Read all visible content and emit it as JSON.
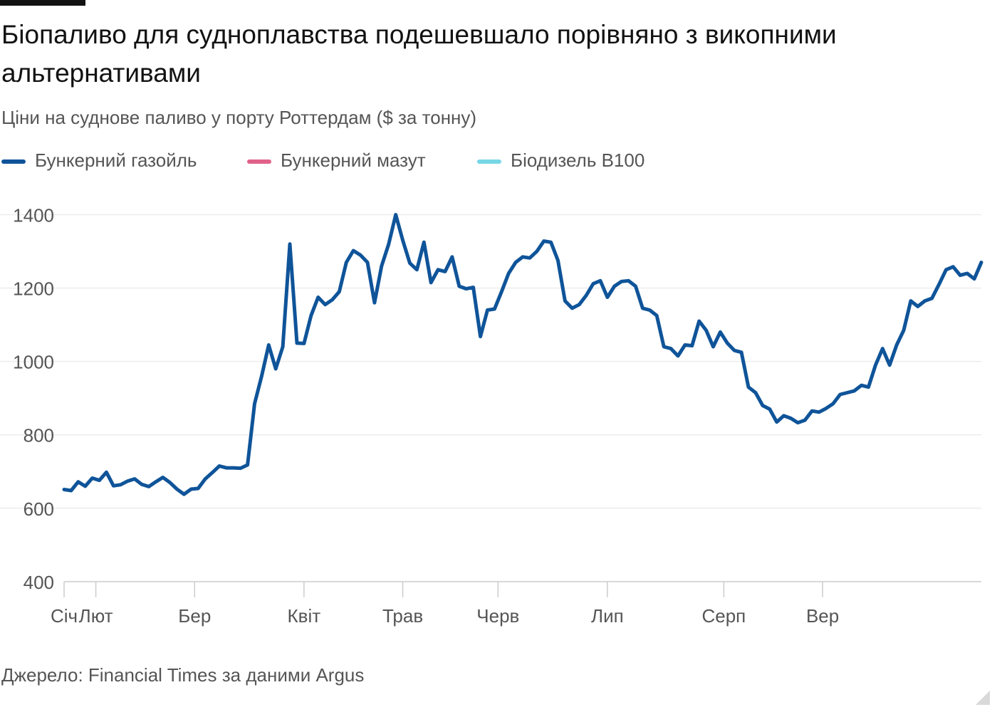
{
  "title": "Біопаливо для судноплавства подешевшало порівняно з викопними альтернативами",
  "subtitle": "Ціни на суднове паливо у порту Роттердам ($ за тонну)",
  "source": "Джерело: Financial Times за даними Argus",
  "legend": [
    {
      "label": "Бункерний газойль",
      "color": "#0f5499"
    },
    {
      "label": "Бункерний мазут",
      "color": "#e0628a"
    },
    {
      "label": "Біодизель B100",
      "color": "#76d7e6"
    }
  ],
  "chart_data": {
    "type": "line",
    "title": "Біопаливо для судноплавства подешевшало порівняно з викопними альтернативами",
    "subtitle": "Ціни на суднове паливо у порту Роттердам ($ за тонну)",
    "xlabel": "",
    "ylabel": "",
    "xlim": [
      1,
      261
    ],
    "ylim": [
      390,
      1500
    ],
    "y_ticks": [
      400,
      600,
      800,
      1000,
      1200,
      1400
    ],
    "x_ticks": [
      {
        "label": "Січ",
        "x": 1
      },
      {
        "label": "Лют",
        "x": 10
      },
      {
        "label": "Бер",
        "x": 38
      },
      {
        "label": "Квіт",
        "x": 69
      },
      {
        "label": "Трав",
        "x": 97
      },
      {
        "label": "Черв",
        "x": 124
      },
      {
        "label": "Лип",
        "x": 155
      },
      {
        "label": "Серп",
        "x": 188
      },
      {
        "label": "Вер",
        "x": 216
      }
    ],
    "grid": true,
    "legend_position": "top-left",
    "series": [
      {
        "name": "Бункерний газойль",
        "color": "#0f5499",
        "points": [
          [
            1,
            651
          ],
          [
            3,
            648
          ],
          [
            5,
            672
          ],
          [
            7,
            660
          ],
          [
            9,
            682
          ],
          [
            11,
            676
          ],
          [
            13,
            698
          ],
          [
            15,
            661
          ],
          [
            17,
            664
          ],
          [
            19,
            674
          ],
          [
            21,
            680
          ],
          [
            23,
            665
          ],
          [
            25,
            659
          ],
          [
            27,
            672
          ],
          [
            29,
            684
          ],
          [
            31,
            670
          ],
          [
            33,
            652
          ],
          [
            35,
            638
          ],
          [
            37,
            652
          ],
          [
            39,
            654
          ],
          [
            41,
            680
          ],
          [
            43,
            697
          ],
          [
            45,
            715
          ],
          [
            47,
            710
          ],
          [
            49,
            710
          ],
          [
            51,
            709
          ],
          [
            53,
            718
          ],
          [
            55,
            885
          ],
          [
            57,
            960
          ],
          [
            59,
            1045
          ],
          [
            61,
            980
          ],
          [
            63,
            1040
          ],
          [
            65,
            1320
          ],
          [
            67,
            1050
          ],
          [
            69,
            1049
          ],
          [
            71,
            1125
          ],
          [
            73,
            1175
          ],
          [
            75,
            1155
          ],
          [
            77,
            1168
          ],
          [
            79,
            1190
          ],
          [
            81,
            1270
          ],
          [
            83,
            1302
          ],
          [
            85,
            1290
          ],
          [
            87,
            1270
          ],
          [
            89,
            1160
          ],
          [
            91,
            1260
          ],
          [
            93,
            1320
          ],
          [
            95,
            1400
          ],
          [
            97,
            1330
          ],
          [
            99,
            1268
          ],
          [
            101,
            1250
          ],
          [
            103,
            1325
          ],
          [
            105,
            1215
          ],
          [
            107,
            1250
          ],
          [
            109,
            1245
          ],
          [
            111,
            1285
          ],
          [
            113,
            1205
          ],
          [
            115,
            1198
          ],
          [
            117,
            1202
          ],
          [
            119,
            1068
          ],
          [
            121,
            1140
          ],
          [
            123,
            1143
          ],
          [
            125,
            1190
          ],
          [
            127,
            1240
          ],
          [
            129,
            1270
          ],
          [
            131,
            1285
          ],
          [
            133,
            1282
          ],
          [
            135,
            1300
          ],
          [
            137,
            1328
          ],
          [
            139,
            1325
          ],
          [
            141,
            1275
          ],
          [
            143,
            1165
          ],
          [
            145,
            1145
          ],
          [
            147,
            1155
          ],
          [
            149,
            1180
          ],
          [
            151,
            1212
          ],
          [
            153,
            1220
          ],
          [
            155,
            1175
          ],
          [
            157,
            1205
          ],
          [
            159,
            1218
          ],
          [
            161,
            1220
          ],
          [
            163,
            1205
          ],
          [
            165,
            1145
          ],
          [
            167,
            1140
          ],
          [
            169,
            1125
          ],
          [
            171,
            1040
          ],
          [
            173,
            1035
          ],
          [
            175,
            1015
          ],
          [
            177,
            1045
          ],
          [
            179,
            1043
          ],
          [
            181,
            1110
          ],
          [
            183,
            1085
          ],
          [
            185,
            1040
          ],
          [
            187,
            1080
          ],
          [
            189,
            1050
          ],
          [
            191,
            1030
          ],
          [
            193,
            1025
          ],
          [
            195,
            930
          ],
          [
            197,
            915
          ],
          [
            199,
            880
          ],
          [
            201,
            870
          ],
          [
            203,
            835
          ],
          [
            205,
            852
          ],
          [
            207,
            845
          ],
          [
            209,
            833
          ],
          [
            211,
            840
          ],
          [
            213,
            865
          ],
          [
            215,
            862
          ],
          [
            217,
            872
          ],
          [
            219,
            885
          ],
          [
            221,
            910
          ],
          [
            223,
            915
          ],
          [
            225,
            920
          ],
          [
            227,
            935
          ],
          [
            229,
            930
          ],
          [
            231,
            990
          ],
          [
            233,
            1035
          ],
          [
            235,
            990
          ],
          [
            237,
            1045
          ],
          [
            239,
            1085
          ],
          [
            241,
            1165
          ],
          [
            243,
            1150
          ],
          [
            245,
            1165
          ],
          [
            247,
            1172
          ],
          [
            249,
            1210
          ],
          [
            251,
            1250
          ],
          [
            253,
            1258
          ],
          [
            255,
            1235
          ],
          [
            257,
            1240
          ],
          [
            259,
            1225
          ],
          [
            261,
            1270
          ]
        ]
      }
    ]
  }
}
